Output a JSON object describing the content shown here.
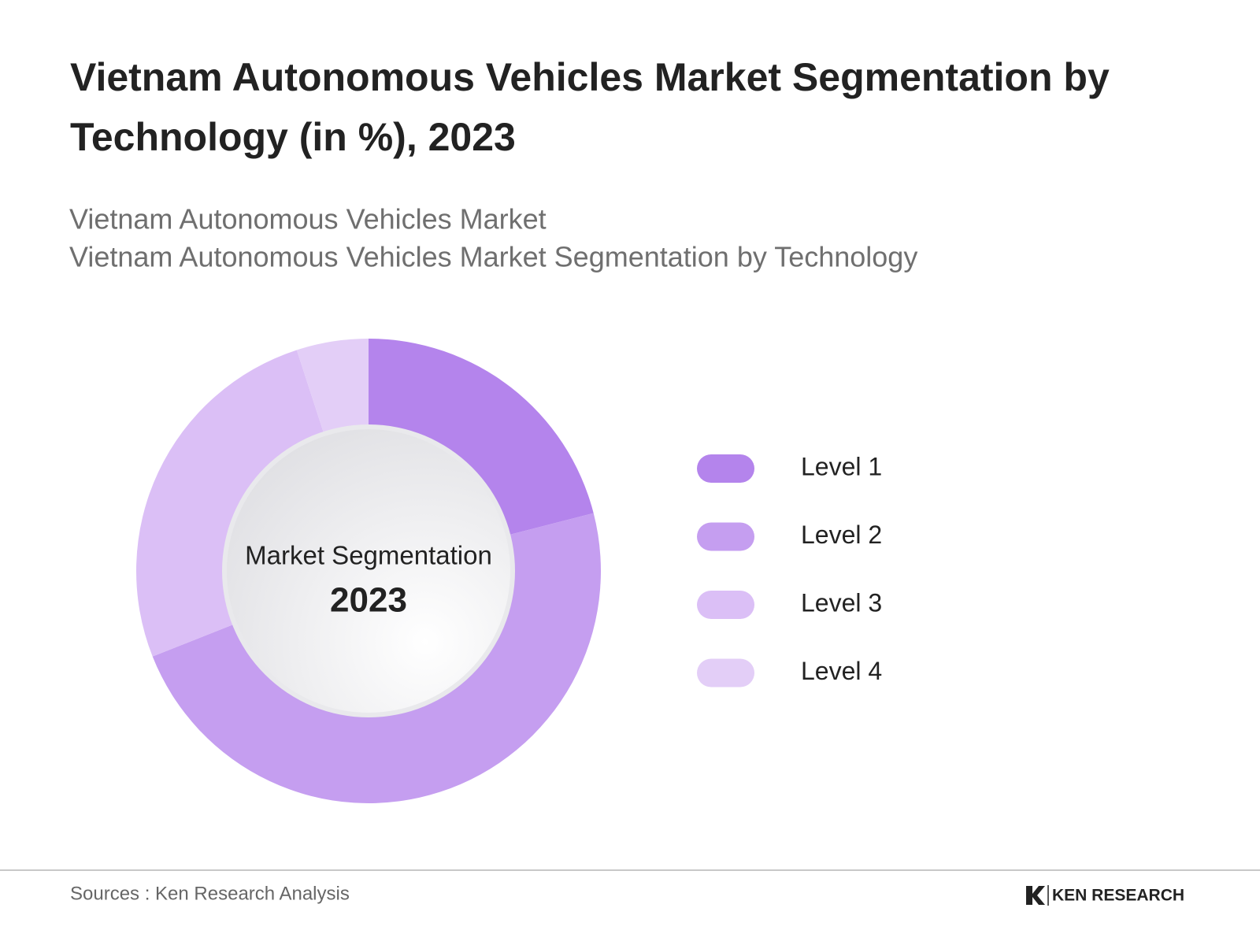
{
  "chart_data": {
    "type": "donut",
    "title": [
      "Vietnam Autonomous Vehicles Market Segmentation by",
      "Technology (in %), 2023"
    ],
    "subtitle": [
      "Vietnam Autonomous Vehicles Market",
      "Vietnam Autonomous Vehicles Market Segmentation by Technology"
    ],
    "center_label": "Market Segmentation",
    "center_year": "2023",
    "categories": [
      "Level 1",
      "Level 2",
      "Level 3",
      "Level 4"
    ],
    "values": [
      21,
      48,
      26,
      5
    ],
    "colors": [
      "#b484ec",
      "#c59ef0",
      "#dbbff6",
      "#e3cef7"
    ]
  },
  "footer": {
    "source": "Sources : Ken Research Analysis",
    "logo": "KEN RESEARCH"
  }
}
